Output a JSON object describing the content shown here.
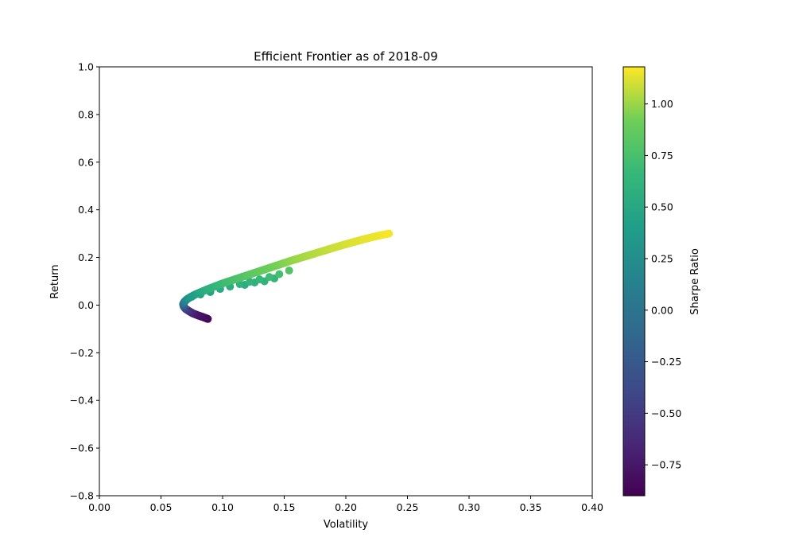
{
  "chart_data": {
    "type": "scatter",
    "title": "Efficient Frontier as of 2018-09",
    "xlabel": "Volatility",
    "ylabel": "Return",
    "xlim": [
      0.0,
      0.4
    ],
    "ylim": [
      -0.8,
      1.0
    ],
    "xticks": [
      "0.00",
      "0.05",
      "0.10",
      "0.15",
      "0.20",
      "0.25",
      "0.30",
      "0.35",
      "0.40"
    ],
    "yticks": [
      "−0.8",
      "−0.6",
      "−0.4",
      "−0.2",
      "0.0",
      "0.2",
      "0.4",
      "0.6",
      "0.8",
      "1.0"
    ],
    "grid": false,
    "colormap": "viridis",
    "colorbar": {
      "label": "Sharpe Ratio",
      "range": [
        -0.9,
        1.18
      ],
      "ticks": [
        "−0.75",
        "−0.50",
        "−0.25",
        "0.00",
        "0.25",
        "0.50",
        "0.75",
        "1.00"
      ]
    },
    "frontier": {
      "x": [
        0.088,
        0.084,
        0.08,
        0.076,
        0.073,
        0.07,
        0.0685,
        0.068,
        0.069,
        0.071,
        0.074,
        0.078,
        0.083,
        0.088,
        0.094,
        0.1,
        0.107,
        0.114,
        0.121,
        0.128,
        0.135,
        0.142,
        0.149,
        0.156,
        0.163,
        0.17,
        0.177,
        0.184,
        0.191,
        0.198,
        0.205,
        0.212,
        0.219,
        0.226,
        0.235
      ],
      "y": [
        -0.058,
        -0.05,
        -0.043,
        -0.035,
        -0.026,
        -0.016,
        -0.006,
        0.004,
        0.014,
        0.024,
        0.034,
        0.045,
        0.056,
        0.067,
        0.079,
        0.091,
        0.103,
        0.115,
        0.127,
        0.139,
        0.151,
        0.163,
        0.175,
        0.187,
        0.198,
        0.209,
        0.22,
        0.231,
        0.242,
        0.253,
        0.263,
        0.273,
        0.282,
        0.291,
        0.3
      ],
      "sharpe": [
        -0.85,
        -0.82,
        -0.78,
        -0.72,
        -0.62,
        -0.5,
        -0.35,
        -0.15,
        0.05,
        0.2,
        0.33,
        0.42,
        0.5,
        0.57,
        0.63,
        0.68,
        0.73,
        0.78,
        0.82,
        0.86,
        0.89,
        0.92,
        0.95,
        0.98,
        1.01,
        1.03,
        1.05,
        1.07,
        1.09,
        1.1,
        1.12,
        1.13,
        1.14,
        1.15,
        1.17
      ]
    },
    "scatter_below": {
      "x": [
        0.075,
        0.082,
        0.09,
        0.098,
        0.106,
        0.114,
        0.122,
        0.13,
        0.138,
        0.146,
        0.154,
        0.118,
        0.126,
        0.134,
        0.142
      ],
      "y": [
        0.035,
        0.045,
        0.055,
        0.068,
        0.078,
        0.088,
        0.098,
        0.108,
        0.118,
        0.13,
        0.145,
        0.085,
        0.095,
        0.1,
        0.112
      ],
      "sharpe": [
        0.3,
        0.38,
        0.45,
        0.52,
        0.56,
        0.6,
        0.63,
        0.66,
        0.7,
        0.74,
        0.8,
        0.55,
        0.58,
        0.6,
        0.64
      ]
    }
  }
}
